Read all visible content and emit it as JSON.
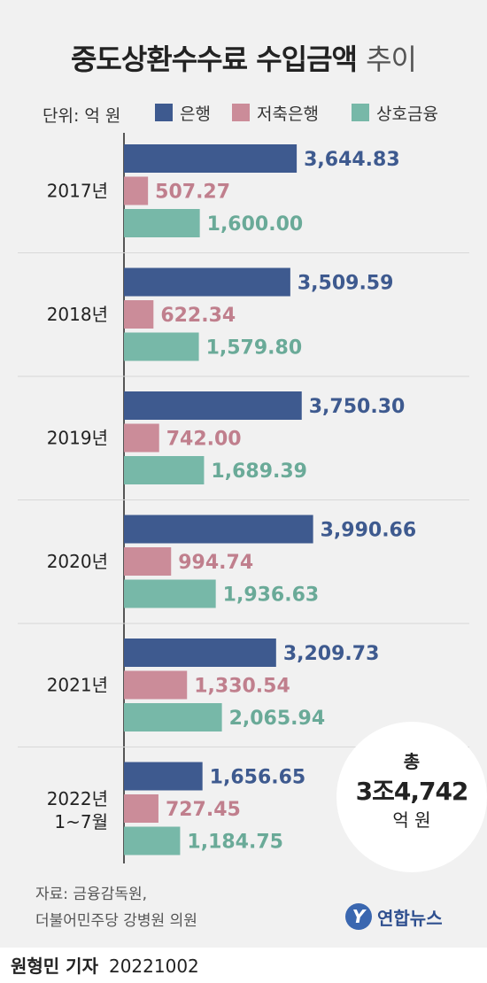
{
  "unit_label": "단위: 억 원",
  "colors": {
    "bank": "#3e5a8f",
    "savings": "#cb8c99",
    "mutual": "#77b8a8"
  },
  "chart_data": {
    "type": "bar",
    "orientation": "horizontal",
    "title_main": "중도상환수수료 수입금액",
    "title_suffix": "추이",
    "categories": [
      {
        "line1": "2017년",
        "line2": ""
      },
      {
        "line1": "2018년",
        "line2": ""
      },
      {
        "line1": "2019년",
        "line2": ""
      },
      {
        "line1": "2020년",
        "line2": ""
      },
      {
        "line1": "2021년",
        "line2": ""
      },
      {
        "line1": "2022년",
        "line2": "1~7월"
      }
    ],
    "series": [
      {
        "name": "은행",
        "values": [
          3644.83,
          3509.59,
          3750.3,
          3990.66,
          3209.73,
          1656.65
        ],
        "labels": [
          "3,644.83",
          "3,509.59",
          "3,750.30",
          "3,990.66",
          "3,209.73",
          "1,656.65"
        ]
      },
      {
        "name": "저축은행",
        "values": [
          507.27,
          622.34,
          742.0,
          994.74,
          1330.54,
          727.45
        ],
        "labels": [
          "507.27",
          "622.34",
          "742.00",
          "994.74",
          "1,330.54",
          "727.45"
        ]
      },
      {
        "name": "상호금융",
        "values": [
          1600.0,
          1579.8,
          1689.39,
          1936.63,
          2065.94,
          1184.75
        ],
        "labels": [
          "1,600.00",
          "1,579.80",
          "1,689.39",
          "1,936.63",
          "2,065.94",
          "1,184.75"
        ]
      }
    ],
    "xlim": [
      0,
      4000
    ],
    "grid": false,
    "legend_position": "top"
  },
  "total": {
    "line1": "총",
    "line2": "3조4,742",
    "line3": "억 원"
  },
  "source": {
    "line1": "자료: 금융감독원,",
    "line2": "더불어민주당 강병원 의원"
  },
  "logo": {
    "mark": "Y",
    "text": "연합뉴스"
  },
  "footer": {
    "author": "원형민 기자",
    "date": "20221002"
  }
}
